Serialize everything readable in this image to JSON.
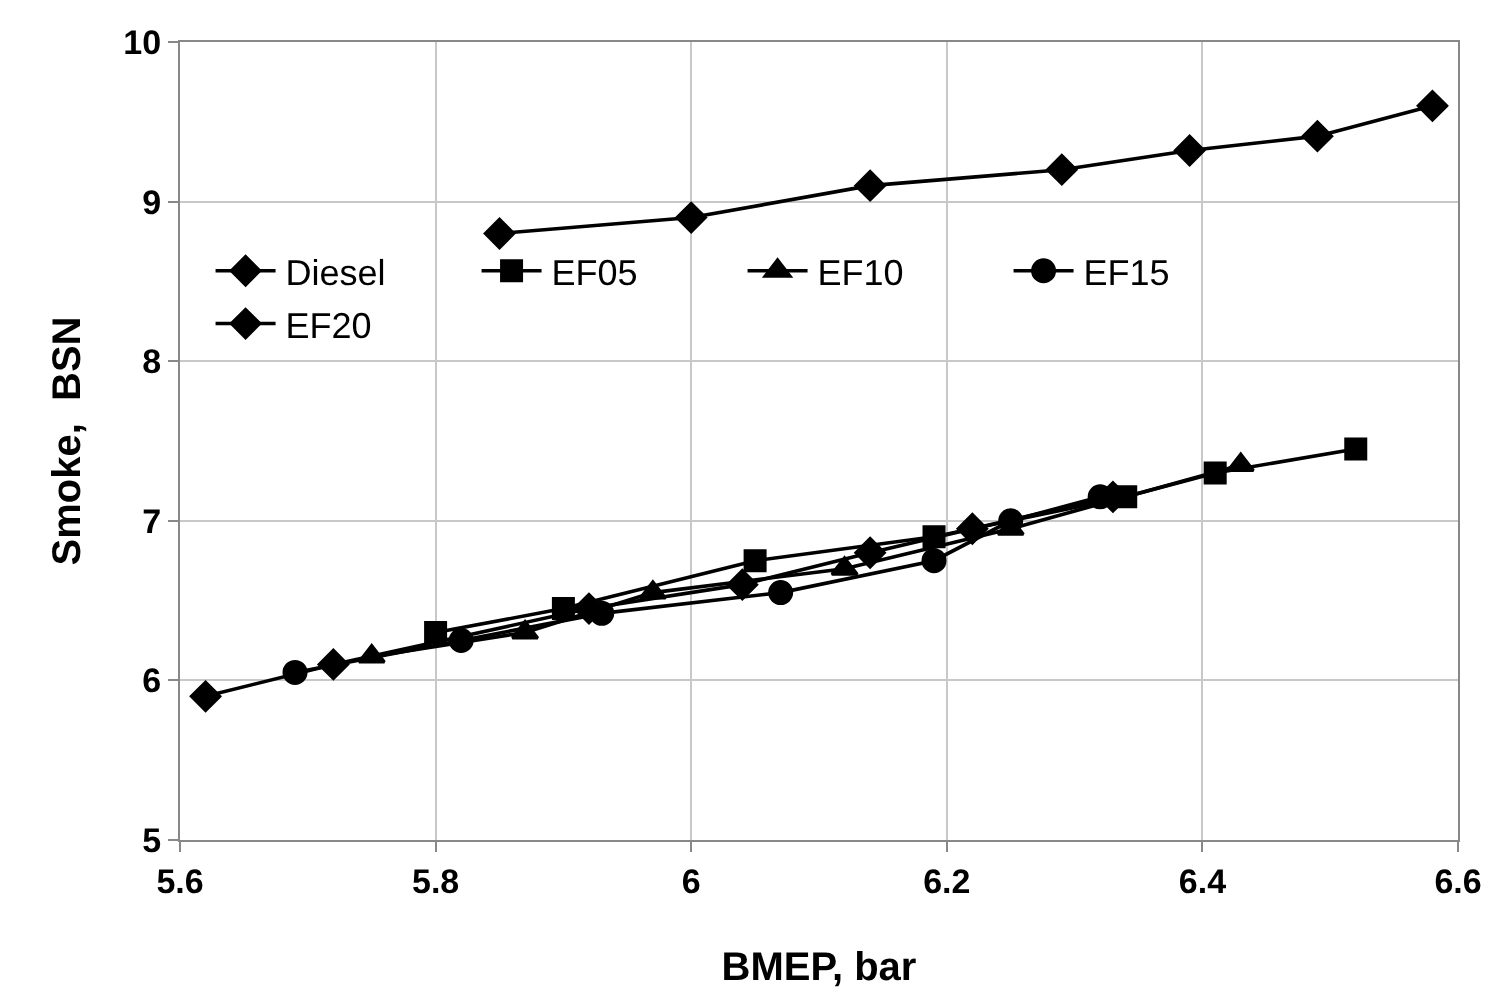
{
  "chart_data": {
    "type": "line",
    "xlabel": "BMEP, bar",
    "ylabel": "Smoke,  BSN",
    "xlim": [
      5.6,
      6.6
    ],
    "xticks": [
      5.6,
      5.8,
      6.0,
      6.2,
      6.4,
      6.6
    ],
    "ylim": [
      5,
      10
    ],
    "yticks": [
      5,
      6,
      7,
      8,
      9,
      10
    ],
    "grid": true,
    "legend": "left",
    "line_style": "solid",
    "series": [
      {
        "name": "Diesel",
        "color": "#000000",
        "marker": "diamond",
        "x": [
          5.85,
          6.0,
          6.14,
          6.29,
          6.39,
          6.49,
          6.58
        ],
        "values": [
          8.8,
          8.9,
          9.1,
          9.2,
          9.32,
          9.41,
          9.6
        ]
      },
      {
        "name": "EF05",
        "color": "#000000",
        "marker": "square",
        "x": [
          5.8,
          5.9,
          6.05,
          6.19,
          6.34,
          6.41,
          6.52
        ],
        "values": [
          6.3,
          6.45,
          6.75,
          6.9,
          7.15,
          7.3,
          7.45
        ]
      },
      {
        "name": "EF10",
        "color": "#000000",
        "marker": "triangle",
        "x": [
          5.75,
          5.87,
          5.97,
          6.12,
          6.25,
          6.43
        ],
        "values": [
          6.15,
          6.3,
          6.55,
          6.7,
          6.95,
          7.35
        ]
      },
      {
        "name": "EF15",
        "color": "#000000",
        "marker": "circle",
        "x": [
          5.69,
          5.82,
          5.93,
          6.07,
          6.19,
          6.25,
          6.32
        ],
        "values": [
          6.05,
          6.25,
          6.42,
          6.55,
          6.75,
          7.0,
          7.15
        ]
      },
      {
        "name": "EF20",
        "color": "#000000",
        "marker": "diamond",
        "x": [
          5.62,
          5.72,
          5.92,
          6.04,
          6.14,
          6.22,
          6.33
        ],
        "values": [
          5.9,
          6.1,
          6.45,
          6.6,
          6.8,
          6.95,
          7.15
        ]
      }
    ]
  }
}
